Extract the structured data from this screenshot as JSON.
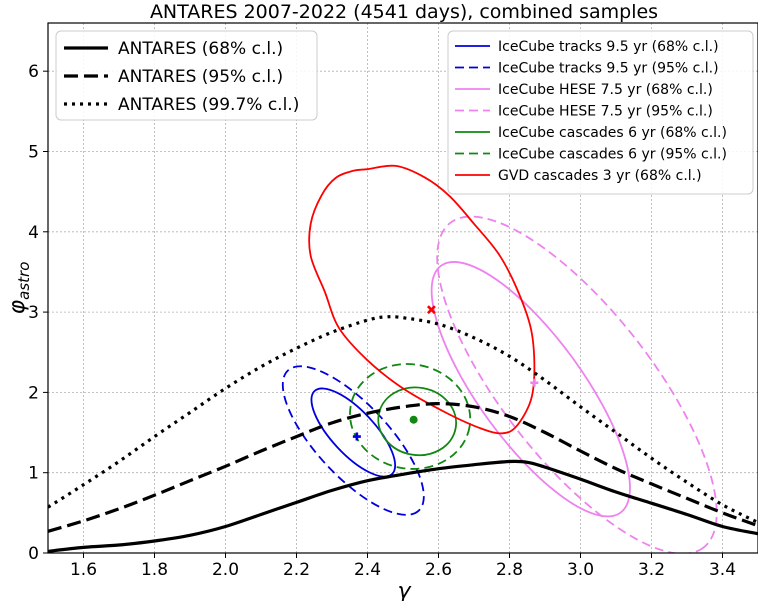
{
  "chart_data": {
    "type": "line",
    "title": "ANTARES 2007-2022 (4541 days), combined samples",
    "xlabel": "γ",
    "ylabel_base": "φ",
    "ylabel_sub": "astro",
    "xlim": [
      1.5,
      3.5
    ],
    "ylim": [
      0,
      6.6
    ],
    "grid": true,
    "x_ticks": [
      "1.6",
      "1.8",
      "2.0",
      "2.2",
      "2.4",
      "2.6",
      "2.8",
      "3.0",
      "3.2",
      "3.4"
    ],
    "y_ticks": [
      "0",
      "1",
      "2",
      "3",
      "4",
      "5",
      "6"
    ],
    "legend_left": {
      "placement": "top-left",
      "entries": [
        {
          "label": "ANTARES (68% c.l.)",
          "style": "solid"
        },
        {
          "label": "ANTARES (95% c.l.)",
          "style": "dashed"
        },
        {
          "label": "ANTARES (99.7% c.l.)",
          "style": "dotted"
        }
      ]
    },
    "legend_right": {
      "placement": "top-right",
      "entries": [
        {
          "label": "IceCube tracks 9.5 yr (68% c.l.)",
          "color": "#0000dd",
          "style": "solid"
        },
        {
          "label": "IceCube tracks 9.5 yr (95% c.l.)",
          "color": "#0000dd",
          "style": "dashed"
        },
        {
          "label": "IceCube HESE 7.5 yr (68% c.l.)",
          "color": "#ee82ee",
          "style": "solid"
        },
        {
          "label": "IceCube HESE 7.5 yr (95% c.l.)",
          "color": "#ee82ee",
          "style": "dashed"
        },
        {
          "label": "IceCube cascades 6 yr (68% c.l.)",
          "color": "#118811",
          "style": "solid"
        },
        {
          "label": "IceCube cascades 6 yr (95% c.l.)",
          "color": "#118811",
          "style": "dashed"
        },
        {
          "label": "GVD cascades 3 yr (68% c.l.)",
          "color": "#ff0000",
          "style": "solid"
        }
      ]
    },
    "antares_curves": [
      {
        "name": "ANTARES (68% c.l.)",
        "style": "solid",
        "points": [
          [
            1.5,
            0.02
          ],
          [
            1.6,
            0.07
          ],
          [
            1.7,
            0.1
          ],
          [
            1.8,
            0.15
          ],
          [
            1.9,
            0.22
          ],
          [
            2.0,
            0.33
          ],
          [
            2.1,
            0.48
          ],
          [
            2.2,
            0.63
          ],
          [
            2.3,
            0.78
          ],
          [
            2.4,
            0.9
          ],
          [
            2.5,
            0.98
          ],
          [
            2.6,
            1.05
          ],
          [
            2.7,
            1.1
          ],
          [
            2.8,
            1.14
          ],
          [
            2.85,
            1.13
          ],
          [
            2.9,
            1.07
          ],
          [
            3.0,
            0.92
          ],
          [
            3.1,
            0.76
          ],
          [
            3.2,
            0.62
          ],
          [
            3.3,
            0.48
          ],
          [
            3.4,
            0.33
          ],
          [
            3.5,
            0.24
          ]
        ]
      },
      {
        "name": "ANTARES (95% c.l.)",
        "style": "dashed",
        "points": [
          [
            1.5,
            0.27
          ],
          [
            1.6,
            0.4
          ],
          [
            1.7,
            0.55
          ],
          [
            1.8,
            0.72
          ],
          [
            1.9,
            0.9
          ],
          [
            2.0,
            1.08
          ],
          [
            2.1,
            1.27
          ],
          [
            2.2,
            1.45
          ],
          [
            2.3,
            1.62
          ],
          [
            2.4,
            1.74
          ],
          [
            2.5,
            1.82
          ],
          [
            2.6,
            1.86
          ],
          [
            2.7,
            1.82
          ],
          [
            2.8,
            1.7
          ],
          [
            2.9,
            1.5
          ],
          [
            3.0,
            1.27
          ],
          [
            3.1,
            1.05
          ],
          [
            3.2,
            0.86
          ],
          [
            3.3,
            0.68
          ],
          [
            3.4,
            0.5
          ],
          [
            3.5,
            0.34
          ]
        ]
      },
      {
        "name": "ANTARES (99.7% c.l.)",
        "style": "dotted",
        "points": [
          [
            1.5,
            0.57
          ],
          [
            1.6,
            0.85
          ],
          [
            1.7,
            1.14
          ],
          [
            1.8,
            1.45
          ],
          [
            1.9,
            1.75
          ],
          [
            2.0,
            2.05
          ],
          [
            2.1,
            2.32
          ],
          [
            2.2,
            2.55
          ],
          [
            2.3,
            2.75
          ],
          [
            2.4,
            2.9
          ],
          [
            2.45,
            2.94
          ],
          [
            2.5,
            2.93
          ],
          [
            2.6,
            2.85
          ],
          [
            2.7,
            2.68
          ],
          [
            2.8,
            2.45
          ],
          [
            2.9,
            2.15
          ],
          [
            3.0,
            1.82
          ],
          [
            3.1,
            1.5
          ],
          [
            3.2,
            1.18
          ],
          [
            3.3,
            0.88
          ],
          [
            3.4,
            0.6
          ],
          [
            3.5,
            0.38
          ]
        ]
      }
    ],
    "contours": [
      {
        "name": "IceCube tracks 9.5 yr (68% c.l.)",
        "color": "#0000dd",
        "style": "solid",
        "cx": 2.36,
        "cy": 1.5,
        "rx": 0.16,
        "ry": 0.27,
        "rot": 47
      },
      {
        "name": "IceCube tracks 9.5 yr (95% c.l.)",
        "color": "#0000dd",
        "style": "dashed",
        "cx": 2.36,
        "cy": 1.4,
        "rx": 0.27,
        "ry": 0.45,
        "rot": 47
      },
      {
        "name": "IceCube HESE 7.5 yr (68% c.l.)",
        "color": "#ee82ee",
        "style": "solid",
        "cx": 2.86,
        "cy": 2.04,
        "rx": 0.43,
        "ry": 0.65,
        "rot": 54
      },
      {
        "name": "IceCube HESE 7.5 yr (95% c.l.)",
        "color": "#ee82ee",
        "style": "dashed",
        "cx": 2.99,
        "cy": 2.09,
        "rx": 0.58,
        "ry": 0.93,
        "rot": 52
      },
      {
        "name": "IceCube cascades 6 yr (68% c.l.)",
        "color": "#118811",
        "style": "solid",
        "cx": 2.54,
        "cy": 1.64,
        "rx": 0.11,
        "ry": 0.42,
        "rot": 10
      },
      {
        "name": "IceCube cascades 6 yr (95% c.l.)",
        "color": "#118811",
        "style": "dashed",
        "cx": 2.52,
        "cy": 1.7,
        "rx": 0.17,
        "ry": 0.65,
        "rot": 10
      }
    ],
    "gvd_contour": {
      "name": "GVD cascades 3 yr (68% c.l.)",
      "color": "#ff0000",
      "style": "solid",
      "points": [
        [
          2.4,
          4.78
        ],
        [
          2.48,
          4.82
        ],
        [
          2.56,
          4.68
        ],
        [
          2.63,
          4.45
        ],
        [
          2.7,
          4.1
        ],
        [
          2.77,
          3.72
        ],
        [
          2.82,
          3.3
        ],
        [
          2.86,
          2.8
        ],
        [
          2.87,
          2.3
        ],
        [
          2.86,
          1.9
        ],
        [
          2.82,
          1.58
        ],
        [
          2.78,
          1.49
        ],
        [
          2.72,
          1.55
        ],
        [
          2.62,
          1.75
        ],
        [
          2.5,
          2.05
        ],
        [
          2.4,
          2.4
        ],
        [
          2.32,
          2.8
        ],
        [
          2.28,
          3.25
        ],
        [
          2.24,
          3.7
        ],
        [
          2.24,
          4.1
        ],
        [
          2.27,
          4.45
        ],
        [
          2.31,
          4.67
        ],
        [
          2.36,
          4.76
        ]
      ]
    },
    "best_fits": [
      {
        "name": "IceCube tracks 9.5 yr",
        "marker": "plus",
        "color": "#0000dd",
        "x": 2.37,
        "y": 1.45
      },
      {
        "name": "IceCube cascades 6 yr",
        "marker": "circle",
        "color": "#118811",
        "x": 2.53,
        "y": 1.66
      },
      {
        "name": "GVD cascades 3 yr",
        "marker": "x",
        "color": "#ff0000",
        "x": 2.58,
        "y": 3.03
      },
      {
        "name": "IceCube HESE 7.5 yr",
        "marker": "plus",
        "color": "#ee82ee",
        "x": 2.87,
        "y": 2.12
      }
    ]
  }
}
